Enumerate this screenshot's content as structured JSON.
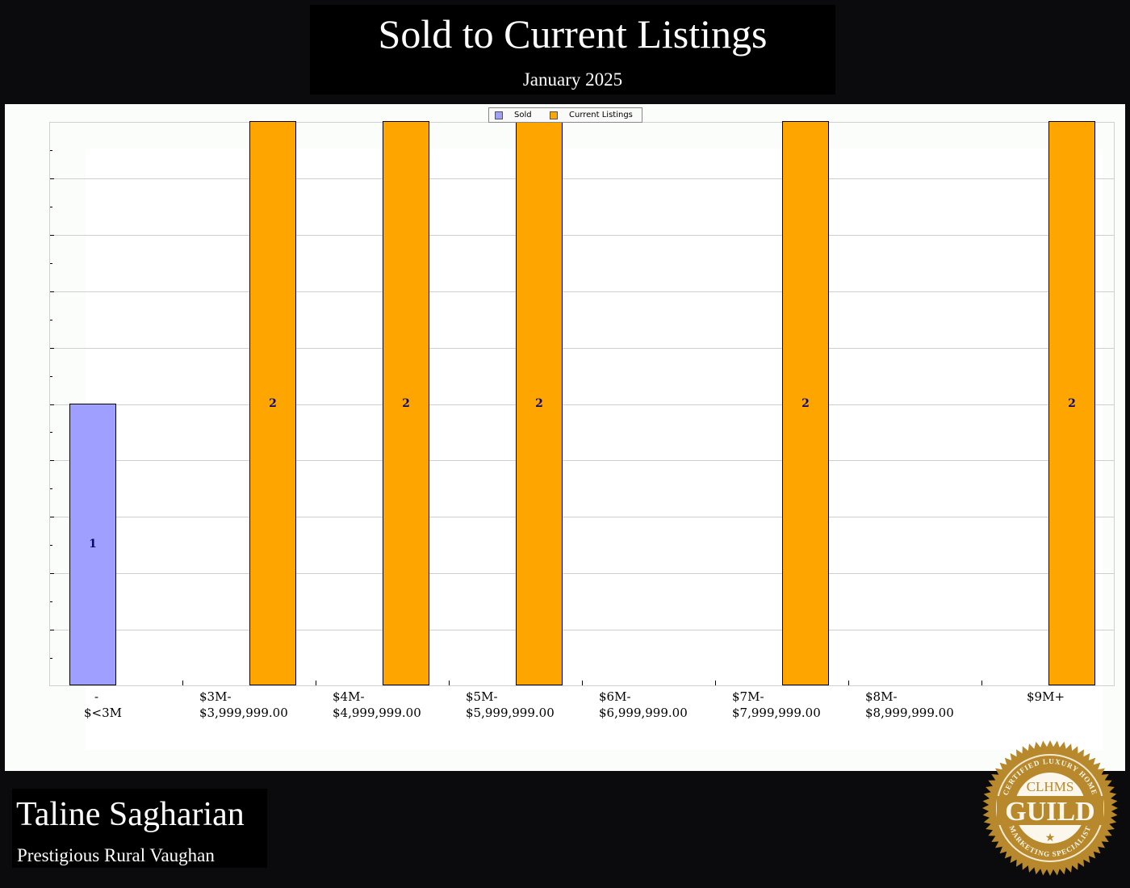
{
  "header": {
    "title": "Sold to Current Listings",
    "subtitle": "January 2025"
  },
  "legend": {
    "items": [
      {
        "label": "Sold",
        "color": "#9f9fff"
      },
      {
        "label": "Current Listings",
        "color": "#ffa500"
      }
    ]
  },
  "footer": {
    "agent_name": "Taline Sagharian",
    "area": "Prestigious Rural Vaughan"
  },
  "badge": {
    "top_text": "CERTIFIED LUXURY HOME",
    "org": "CLHMS",
    "main": "GUILD",
    "bottom_text": "MARKETING SPECIALIST",
    "color": "#b8892c"
  },
  "colors": {
    "sold": "#9f9fff",
    "current": "#ffa500",
    "label_text": "#0a0a6a",
    "background": "#0b0a0d"
  },
  "chart_data": {
    "type": "bar",
    "title": "Sold to Current Listings",
    "subtitle": "January 2025",
    "xlabel": "",
    "ylabel": "",
    "categories": [
      "-\n$<3M",
      "$3M-\n$3,999,999.00",
      "$4M-\n$4,999,999.00",
      "$5M-\n$5,999,999.00",
      "$6M-\n$6,999,999.00",
      "$7M-\n$7,999,999.00",
      "$8M-\n$8,999,999.00",
      "$9M+"
    ],
    "series": [
      {
        "name": "Sold",
        "color": "#9f9fff",
        "values": [
          1,
          0,
          0,
          0,
          0,
          0,
          0,
          0
        ]
      },
      {
        "name": "Current Listings",
        "color": "#ffa500",
        "values": [
          0,
          2,
          2,
          2,
          0,
          2,
          0,
          2
        ]
      }
    ],
    "ylim": [
      0,
      2
    ],
    "yticks_labeled": false,
    "grid": true,
    "legend_position": "top-center",
    "data_labels": true
  }
}
